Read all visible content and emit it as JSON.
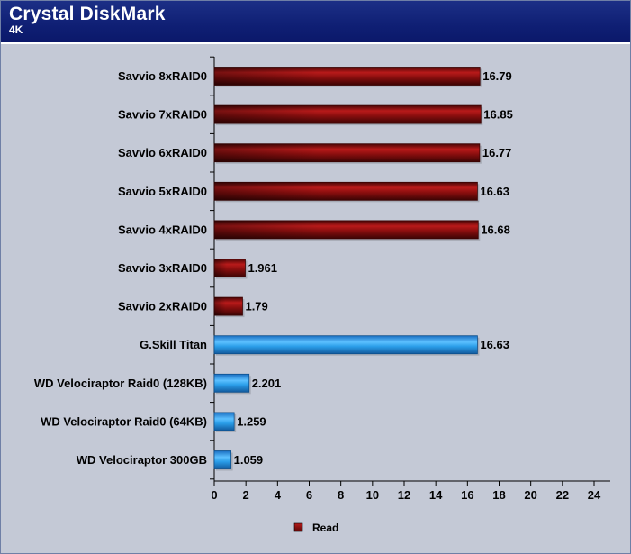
{
  "header": {
    "title": "Crystal DiskMark",
    "subtitle": "4K"
  },
  "colors": {
    "header_bg": "#0f1f74",
    "plot_bg": "#c4c9d6",
    "read_series": "#8b0d0d",
    "highlight_series": "#2a9de8"
  },
  "chart_data": {
    "type": "bar",
    "orientation": "horizontal",
    "categories": [
      "Savvio 8xRAID0",
      "Savvio 7xRAID0",
      "Savvio 6xRAID0",
      "Savvio 5xRAID0",
      "Savvio 4xRAID0",
      "Savvio 3xRAID0",
      "Savvio 2xRAID0",
      "G.Skill Titan",
      "WD Velociraptor Raid0 (128KB)",
      "WD Velociraptor Raid0 (64KB)",
      "WD Velociraptor 300GB"
    ],
    "values": [
      16.79,
      16.85,
      16.77,
      16.63,
      16.68,
      1.961,
      1.79,
      16.63,
      2.201,
      1.259,
      1.059
    ],
    "value_labels": [
      "16.79",
      "16.85",
      "16.77",
      "16.63",
      "16.68",
      "1.961",
      "1.79",
      "16.63",
      "2.201",
      "1.259",
      "1.059"
    ],
    "bar_colors": [
      "red",
      "red",
      "red",
      "red",
      "red",
      "red",
      "red",
      "blue",
      "blue",
      "blue",
      "blue"
    ],
    "series": [
      {
        "name": "Read",
        "values": [
          16.79,
          16.85,
          16.77,
          16.63,
          16.68,
          1.961,
          1.79,
          16.63,
          2.201,
          1.259,
          1.059
        ]
      }
    ],
    "xlim": [
      0,
      24
    ],
    "xticks": [
      "0",
      "2",
      "4",
      "6",
      "8",
      "10",
      "12",
      "14",
      "16",
      "18",
      "20",
      "22",
      "24"
    ],
    "grid": false,
    "legend": {
      "position": "bottom",
      "entries": [
        "Read"
      ]
    }
  }
}
